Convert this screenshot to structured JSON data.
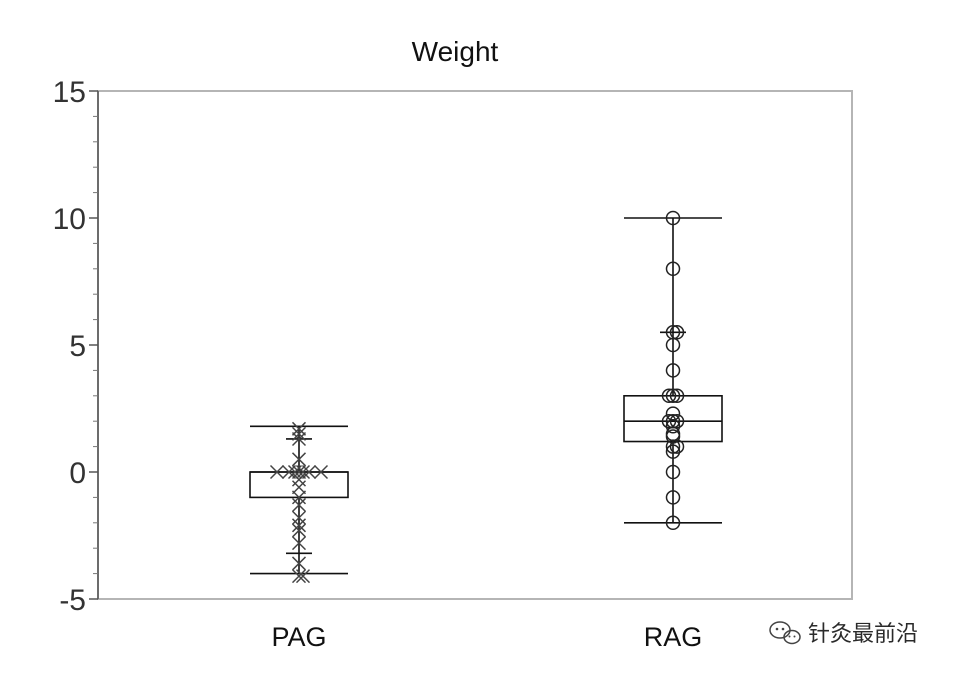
{
  "chart_data": {
    "type": "box",
    "title": "Weight",
    "xlabel": "",
    "ylabel": "",
    "ylim": [
      -5,
      15
    ],
    "yticks": [
      -5,
      0,
      5,
      10,
      15
    ],
    "categories": [
      "PAG",
      "RAG"
    ],
    "grid": false,
    "legend": "none",
    "series": [
      {
        "category": "PAG",
        "marker": "x",
        "box": {
          "whisker_low": -4,
          "q1": -1,
          "median": 0,
          "q3": 0,
          "whisker_high": 1.8
        },
        "inner_ticks": [
          1.3,
          -3.2
        ],
        "points": [
          1.7,
          1.5,
          1.3,
          0.5,
          0,
          0,
          0,
          0,
          0,
          0,
          0,
          -0.3,
          -0.6,
          -1,
          -1.3,
          -1.8,
          -2.1,
          -2.3,
          -2.8,
          -3.6,
          -4.1,
          -4.1
        ]
      },
      {
        "category": "RAG",
        "marker": "o",
        "box": {
          "whisker_low": -2,
          "q1": 1.2,
          "median": 2,
          "q3": 3,
          "whisker_high": 10
        },
        "inner_ticks": [
          5.5
        ],
        "points": [
          10,
          8,
          5.5,
          5.5,
          5,
          4,
          3,
          3,
          3,
          2.3,
          2,
          2,
          2,
          1.8,
          1.5,
          1.4,
          1,
          1,
          0.8,
          0,
          -1,
          -2
        ]
      }
    ]
  },
  "watermark": {
    "icon": "wechat-icon",
    "text": "针灸最前沿"
  }
}
